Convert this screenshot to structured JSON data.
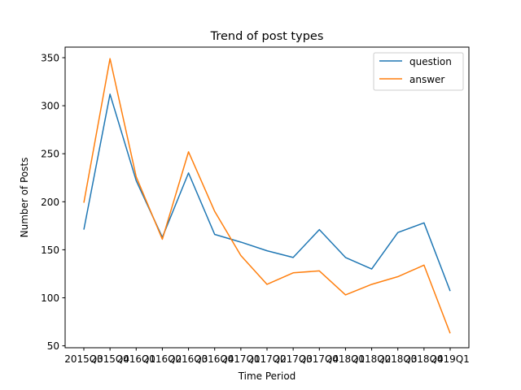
{
  "chart_data": {
    "type": "line",
    "title": "Trend of post types",
    "xlabel": "Time Period",
    "ylabel": "Number of Posts",
    "categories": [
      "2015Q3",
      "2015Q4",
      "2016Q1",
      "2016Q2",
      "2016Q3",
      "2016Q4",
      "2017Q1",
      "2017Q2",
      "2017Q3",
      "2017Q4",
      "2018Q1",
      "2018Q2",
      "2018Q3",
      "2018Q4",
      "2019Q1"
    ],
    "ylim": [
      48,
      361
    ],
    "yticks": [
      50,
      100,
      150,
      200,
      250,
      300,
      350
    ],
    "grid": false,
    "legend_position": "top-right",
    "series": [
      {
        "name": "question",
        "color": "#1f77b4",
        "values": [
          171,
          312,
          222,
          163,
          230,
          166,
          158,
          149,
          142,
          171,
          142,
          130,
          168,
          178,
          107
        ]
      },
      {
        "name": "answer",
        "color": "#ff7f0e",
        "values": [
          199,
          349,
          226,
          161,
          252,
          190,
          144,
          114,
          126,
          128,
          103,
          114,
          122,
          134,
          63
        ]
      }
    ]
  }
}
